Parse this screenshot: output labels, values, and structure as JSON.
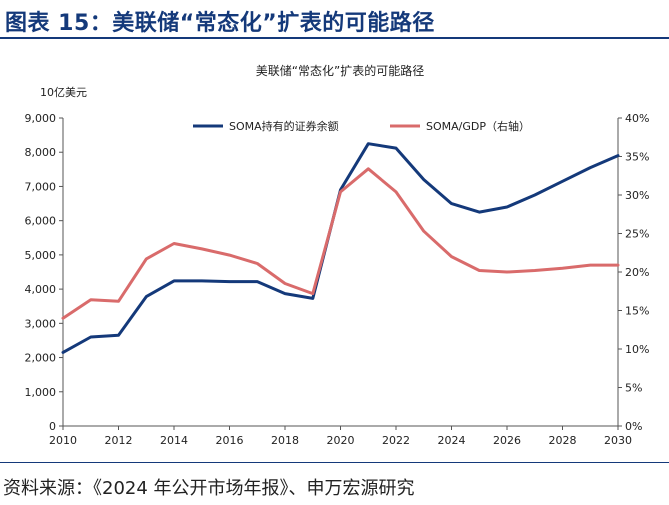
{
  "figure": {
    "heading": "图表 15：美联储“常态化”扩表的可能路径",
    "source": "资料来源：《2024 年公开市场年报》、申万宏源研究"
  },
  "chart_data": {
    "type": "line",
    "title": "美联储“常态化”扩表的可能路径",
    "ylabel": "10亿美元",
    "y2label": "",
    "xlabel": "",
    "xlim": [
      2010,
      2030
    ],
    "ylim": [
      0,
      9000
    ],
    "y2lim": [
      0,
      40
    ],
    "x_ticks": [
      "2010",
      "2012",
      "2014",
      "2016",
      "2018",
      "2020",
      "2022",
      "2024",
      "2026",
      "2028",
      "2030"
    ],
    "y_ticks": [
      "0",
      "1,000",
      "2,000",
      "3,000",
      "4,000",
      "5,000",
      "6,000",
      "7,000",
      "8,000",
      "9,000"
    ],
    "y2_ticks": [
      "0%",
      "5%",
      "10%",
      "15%",
      "20%",
      "25%",
      "30%",
      "35%",
      "40%"
    ],
    "grid": false,
    "legend_position": "top-center",
    "series": [
      {
        "name": "SOMA持有的证券余额",
        "axis": "left",
        "color": "#14397a",
        "x": [
          2010,
          2011,
          2012,
          2013,
          2014,
          2015,
          2016,
          2017,
          2018,
          2019,
          2020,
          2021,
          2022,
          2023,
          2024,
          2025,
          2026,
          2027,
          2028,
          2029,
          2030
        ],
        "values": [
          2150,
          2600,
          2650,
          3780,
          4240,
          4240,
          4220,
          4220,
          3870,
          3730,
          6900,
          8250,
          8120,
          7200,
          6500,
          6250,
          6400,
          6750,
          7150,
          7550,
          7900
        ]
      },
      {
        "name": "SOMA/GDP（右轴）",
        "axis": "right",
        "color": "#d96b6b",
        "x": [
          2010,
          2011,
          2012,
          2013,
          2014,
          2015,
          2016,
          2017,
          2018,
          2019,
          2020,
          2021,
          2022,
          2023,
          2024,
          2025,
          2026,
          2027,
          2028,
          2029,
          2030
        ],
        "values": [
          14.0,
          16.4,
          16.2,
          21.7,
          23.7,
          23.0,
          22.2,
          21.1,
          18.5,
          17.2,
          30.4,
          33.4,
          30.4,
          25.3,
          22.0,
          20.2,
          20.0,
          20.2,
          20.5,
          20.9,
          20.9
        ]
      }
    ]
  }
}
